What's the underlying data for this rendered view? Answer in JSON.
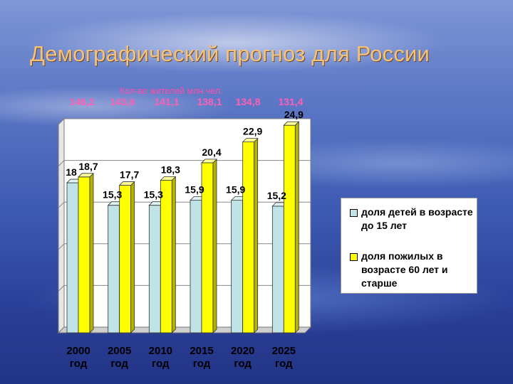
{
  "slide": {
    "title": "Демографический прогноз для России"
  },
  "population": {
    "caption": "Кол-во жителей млн.чел.",
    "values": [
      "146,2",
      "143,6",
      "141,1",
      "138,1",
      "134,8",
      "131,4"
    ]
  },
  "legend": {
    "children_label": "доля детей в возрасте до 15 лет",
    "elderly_label": "доля пожилых в возрасте 60 лет и старше"
  },
  "colors": {
    "children": "#bfe3e6",
    "elderly": "#ffff00",
    "population_text": "#ff5fb4",
    "title": "#f5c27a"
  },
  "chart_data": {
    "type": "bar",
    "categories": [
      "2000 год",
      "2005 год",
      "2010 год",
      "2015 год",
      "2020 год",
      "2025 год"
    ],
    "categories_year": [
      "2000",
      "2005",
      "2010",
      "2015",
      "2020",
      "2025"
    ],
    "categories_suffix": "год",
    "series": [
      {
        "name": "доля детей в возрасте до 15 лет",
        "values": [
          18,
          15.3,
          15.3,
          15.9,
          15.9,
          15.2
        ],
        "labels": [
          "18",
          "15,3",
          "15,3",
          "15,9",
          "15,9",
          "15,2"
        ]
      },
      {
        "name": "доля пожилых в возрасте 60 лет и старше",
        "values": [
          18.7,
          17.7,
          18.3,
          20.4,
          22.9,
          24.9
        ],
        "labels": [
          "18,7",
          "17,7",
          "18,3",
          "20,4",
          "22,9",
          "24,9"
        ]
      }
    ],
    "ylim": [
      0,
      25
    ],
    "grid": true,
    "legend_position": "right",
    "bar_style": "3d"
  }
}
